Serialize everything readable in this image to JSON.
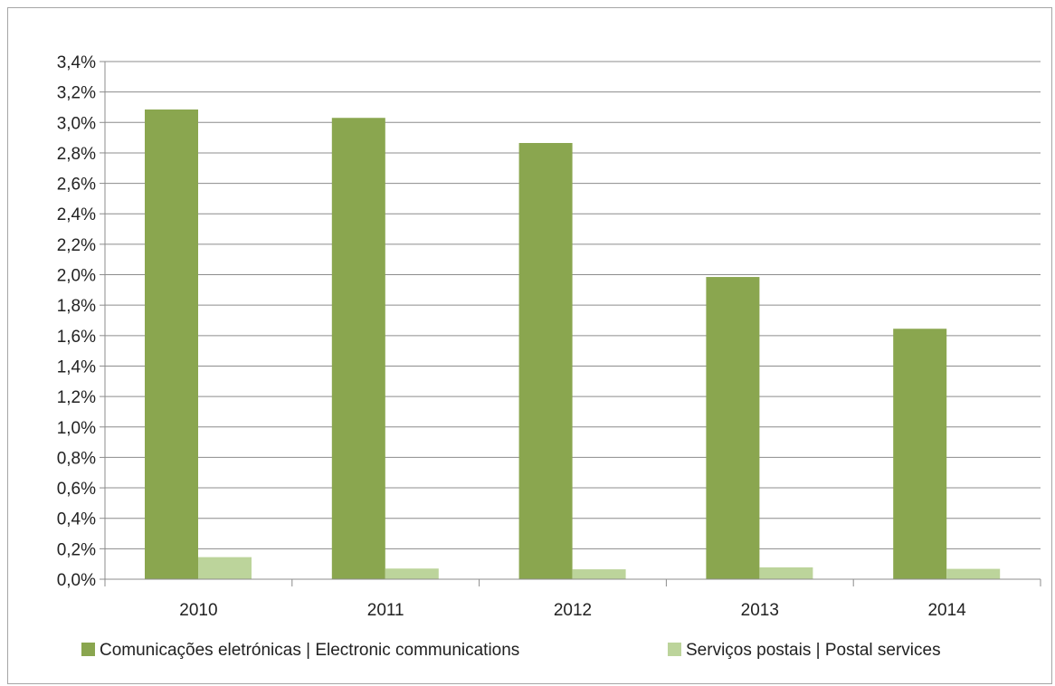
{
  "chart_data": {
    "type": "bar",
    "title": "",
    "xlabel": "",
    "ylabel": "",
    "categories": [
      "2010",
      "2011",
      "2012",
      "2013",
      "2014"
    ],
    "series": [
      {
        "name": "Comunicações eletrónicas | Electronic communications",
        "color": "#8aa64f",
        "values": [
          3.085,
          3.03,
          2.865,
          1.985,
          1.645
        ]
      },
      {
        "name": "Serviços postais | Postal services",
        "color": "#bcd49b",
        "values": [
          0.145,
          0.07,
          0.065,
          0.078,
          0.068
        ]
      }
    ],
    "ylim": [
      0,
      3.4
    ],
    "ytick_step": 0.2,
    "ytick_labels": [
      "0,0%",
      "0,2%",
      "0,4%",
      "0,6%",
      "0,8%",
      "1,0%",
      "1,2%",
      "1,4%",
      "1,6%",
      "1,8%",
      "2,0%",
      "2,2%",
      "2,4%",
      "2,6%",
      "2,8%",
      "3,0%",
      "3,2%",
      "3,4%"
    ],
    "grid": true,
    "legend_position": "bottom"
  }
}
